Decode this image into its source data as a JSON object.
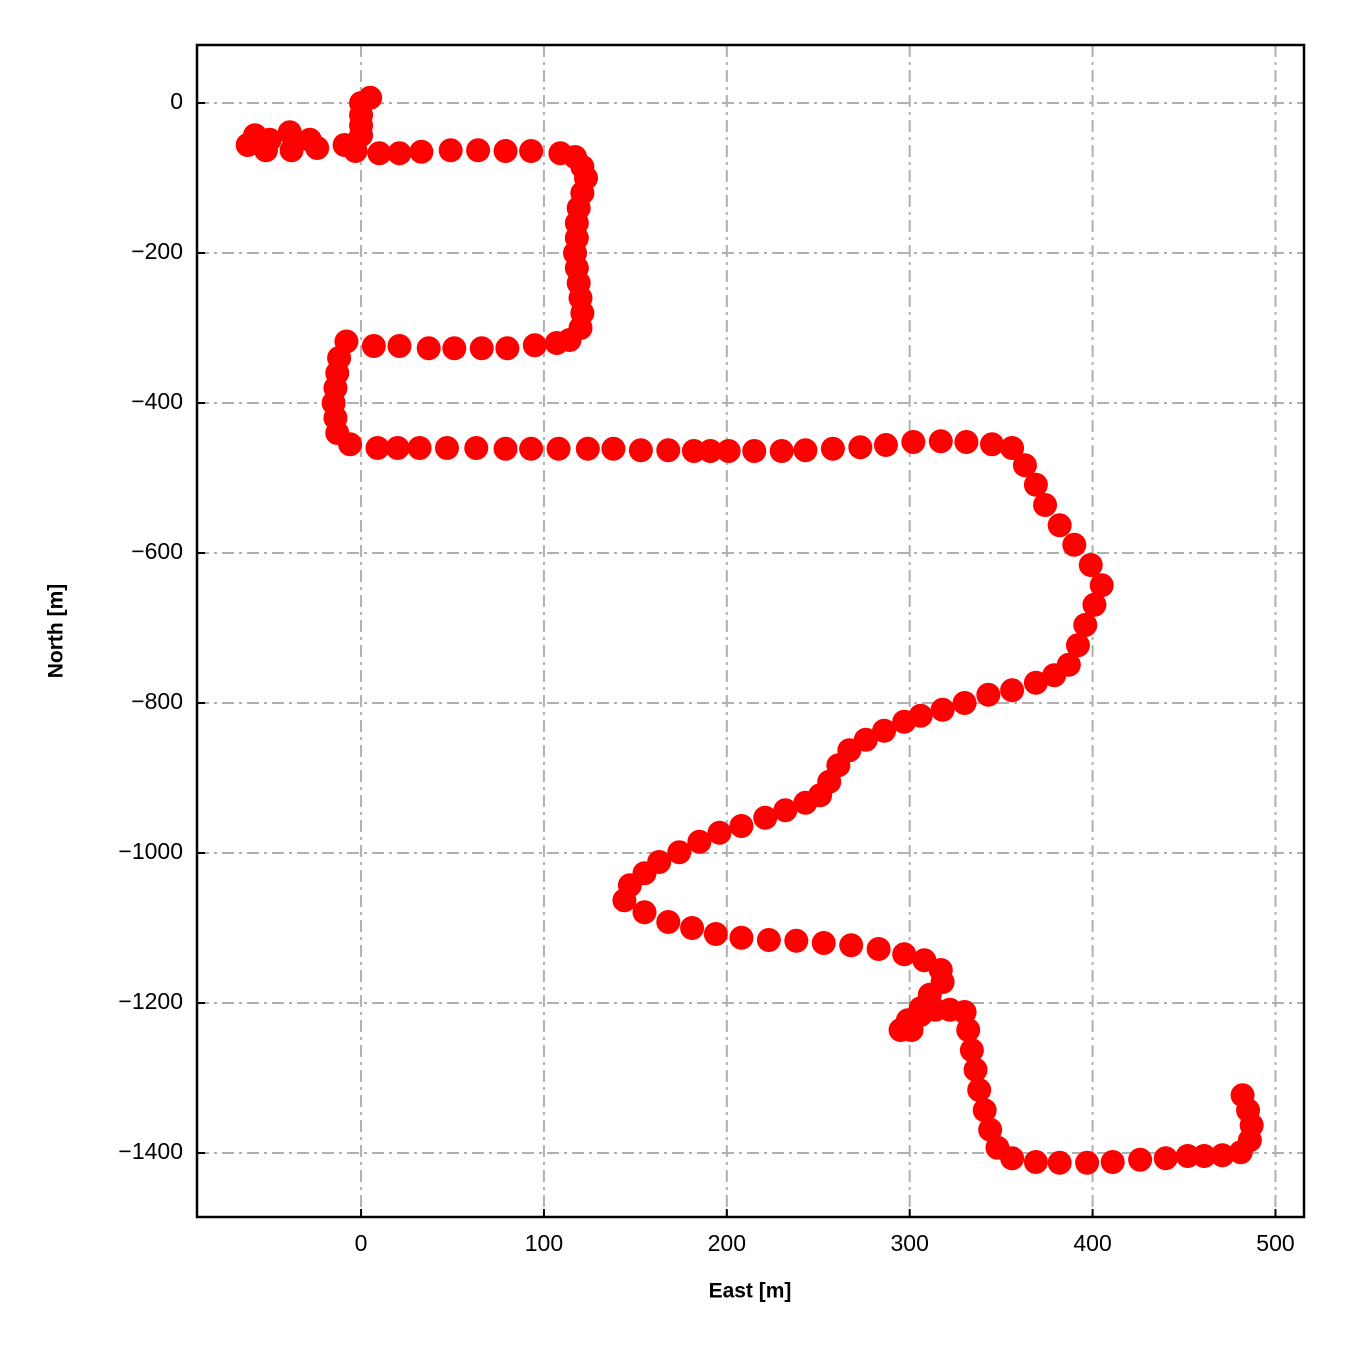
{
  "chart_data": {
    "type": "scatter",
    "xlabel": "East [m]",
    "ylabel": "North [m]",
    "color": "#ff0000",
    "grid": true,
    "xlim": [
      -89.7,
      515.6
    ],
    "ylim": [
      -1485.3,
      77.3
    ],
    "xticks": [
      0,
      100,
      200,
      300,
      400,
      500
    ],
    "yticks": [
      {
        "value": -1400,
        "label": "−1400"
      },
      {
        "value": -1200,
        "label": "−1200"
      },
      {
        "value": -1000,
        "label": "−1000"
      },
      {
        "value": -800,
        "label": "−800"
      },
      {
        "value": -600,
        "label": "−600"
      },
      {
        "value": -400,
        "label": "−400"
      },
      {
        "value": -200,
        "label": "−200"
      },
      0
    ],
    "x": [
      0,
      5,
      0,
      0,
      0,
      -9,
      -24,
      -38,
      -50,
      -58,
      -62,
      -52,
      -39,
      -28,
      -3,
      10,
      21,
      33,
      49,
      64,
      79,
      93,
      109,
      117,
      121,
      123,
      121,
      119,
      118,
      118,
      117,
      118,
      119,
      120,
      121,
      120,
      114,
      107,
      95,
      80,
      66,
      51,
      37,
      21,
      7,
      -8,
      -12,
      -13,
      -14,
      -15,
      -14,
      -13,
      -6,
      9,
      20,
      32,
      47,
      63,
      79,
      93,
      108,
      124,
      138,
      153,
      168,
      182,
      191,
      201,
      215,
      230,
      243,
      258,
      273,
      287,
      302,
      317,
      331,
      345,
      356,
      363,
      369,
      374,
      382,
      390,
      399,
      405,
      401,
      396,
      392,
      387,
      379,
      369,
      356,
      343,
      330,
      318,
      306,
      297,
      286,
      276,
      267,
      261,
      256,
      251,
      243,
      232,
      221,
      208,
      196,
      185,
      174,
      163,
      155,
      147,
      144,
      155,
      168,
      181,
      194,
      208,
      223,
      238,
      253,
      268,
      283,
      297,
      308,
      317,
      318,
      311,
      306,
      299,
      295,
      301,
      306,
      314,
      322,
      330,
      332,
      334,
      336,
      338,
      341,
      344,
      348,
      356,
      369,
      382,
      397,
      411,
      426,
      440,
      452,
      461,
      471,
      481,
      486,
      487,
      485,
      482
    ],
    "values": [
      0,
      7,
      -16,
      -30,
      -43,
      -56,
      -60,
      -63,
      -49,
      -43,
      -56,
      -63,
      -39,
      -49,
      -64,
      -67,
      -67,
      -65,
      -63,
      -63,
      -64,
      -64,
      -67,
      -72,
      -85,
      -100,
      -120,
      -140,
      -160,
      -180,
      -200,
      -220,
      -240,
      -260,
      -280,
      -300,
      -316,
      -320,
      -323,
      -327,
      -327,
      -327,
      -327,
      -324,
      -324,
      -318,
      -340,
      -360,
      -380,
      -400,
      -420,
      -440,
      -455,
      -460,
      -460,
      -460,
      -460,
      -460,
      -461,
      -461,
      -461,
      -461,
      -461,
      -463,
      -463,
      -464,
      -464,
      -464,
      -464,
      -464,
      -463,
      -461,
      -459,
      -456,
      -452,
      -451,
      -452,
      -455,
      -460,
      -483,
      -509,
      -536,
      -563,
      -589,
      -616,
      -643,
      -669,
      -696,
      -723,
      -749,
      -763,
      -773,
      -783,
      -789,
      -800,
      -809,
      -817,
      -825,
      -837,
      -849,
      -863,
      -883,
      -905,
      -923,
      -933,
      -943,
      -953,
      -964,
      -973,
      -985,
      -999,
      -1012,
      -1027,
      -1043,
      -1063,
      -1079,
      -1092,
      -1100,
      -1108,
      -1113,
      -1116,
      -1117,
      -1120,
      -1123,
      -1128,
      -1135,
      -1143,
      -1156,
      -1172,
      -1189,
      -1207,
      -1223,
      -1236,
      -1236,
      -1216,
      -1209,
      -1209,
      -1212,
      -1236,
      -1263,
      -1289,
      -1316,
      -1343,
      -1369,
      -1393,
      -1407,
      -1412,
      -1413,
      -1413,
      -1412,
      -1409,
      -1407,
      -1404,
      -1404,
      -1403,
      -1399,
      -1383,
      -1363,
      -1343,
      -1323
    ]
  }
}
